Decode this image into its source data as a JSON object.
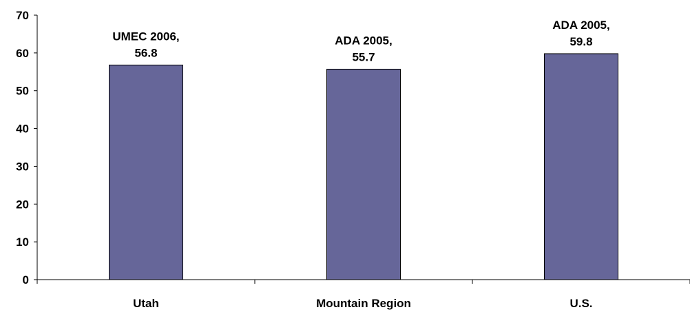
{
  "chart_data": {
    "type": "bar",
    "title": "",
    "xlabel": "",
    "ylabel": "",
    "categories": [
      "Utah",
      "Mountain Region",
      "U.S."
    ],
    "values": [
      56.8,
      55.7,
      59.8
    ],
    "data_labels": [
      [
        "UMEC 2006,",
        "56.8"
      ],
      [
        "ADA 2005,",
        "55.7"
      ],
      [
        "ADA 2005,",
        "59.8"
      ]
    ],
    "ylim": [
      0,
      70
    ],
    "yticks": [
      0,
      10,
      20,
      30,
      40,
      50,
      60,
      70
    ],
    "grid": false,
    "legend": "none",
    "colors": {
      "bar_fill": "#666699",
      "bar_stroke": "#000000",
      "axis": "#000000"
    }
  }
}
